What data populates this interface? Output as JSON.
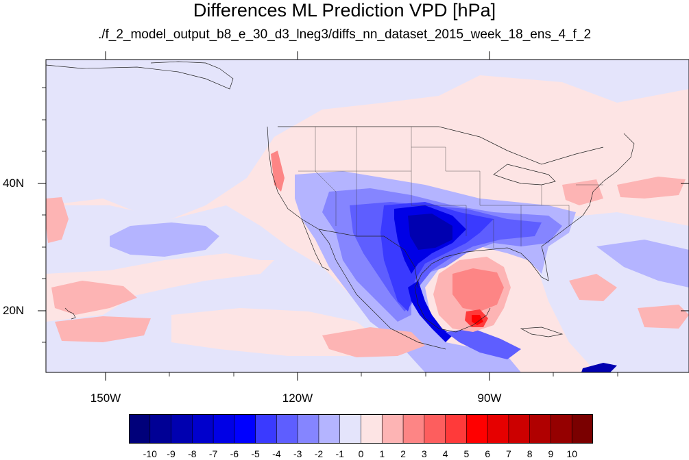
{
  "title": "Differences ML Prediction VPD [hPa]",
  "subtitle": "./f_2_model_output_b8_e_30_d3_lneg3/diffs_nn_dataset_2015_week_18_ens_4_f_2",
  "map": {
    "projection": "cylindrical equidistant",
    "lon_range": [
      -160,
      -59
    ],
    "lat_range": [
      10,
      59
    ],
    "lon_ticks": [
      "150W",
      "120W",
      "90W"
    ],
    "lat_ticks": [
      "40N",
      "20N"
    ],
    "field": "VPD difference",
    "background_level": "0 to 1 (light pink) and -1 to 0 (light blue)",
    "features": [
      "strong negative anomaly (-4 to -7) over Texas, Oklahoma and the southern Plains",
      "negative anomaly (-1 to -5) along Gulf coast, Mexico and southeast US",
      "positive anomaly (3 to 7) over the Gulf of Mexico / Yucatan",
      "weak negative region (-2 to -1) north-east of Hawaii",
      "weak positive areas over the tropical Pacific and western Atlantic"
    ]
  },
  "colorbar": {
    "labels": [
      "-10",
      "-9",
      "-8",
      "-7",
      "-6",
      "-5",
      "-4",
      "-3",
      "-2",
      "-1",
      "0",
      "1",
      "2",
      "3",
      "4",
      "5",
      "6",
      "7",
      "8",
      "9",
      "10"
    ],
    "colors": [
      "#00007a",
      "#000095",
      "#0000b0",
      "#0000cc",
      "#0000e6",
      "#0000ff",
      "#3a3aff",
      "#5e5eff",
      "#8585ff",
      "#b4b4ff",
      "#e4e4fb",
      "#fde4e4",
      "#fdb4b4",
      "#fd8585",
      "#fd5e5e",
      "#ff3a3a",
      "#ff0000",
      "#e60000",
      "#cc0000",
      "#b00000",
      "#950000",
      "#7a0000"
    ]
  }
}
